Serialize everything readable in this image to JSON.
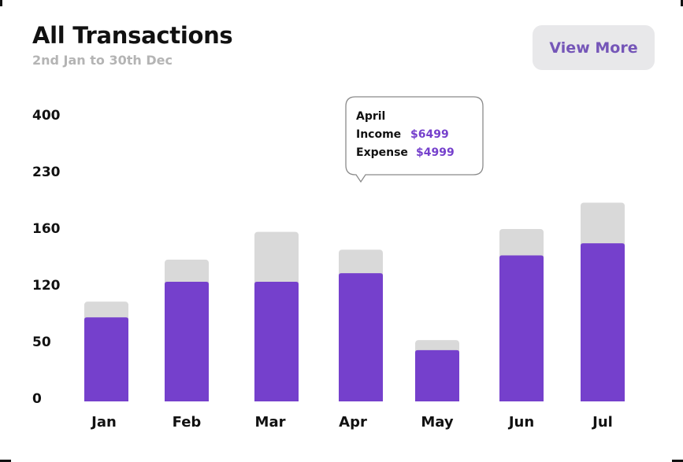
{
  "header": {
    "title": "All Transactions",
    "subtitle": "2nd Jan to 30th Dec",
    "view_more_label": "View More"
  },
  "colors": {
    "income": "#7540cc",
    "total": "#d9d9d9",
    "tooltip_value": "#7540cc",
    "button_text": "#7556b8",
    "button_bg": "#e8e8ea"
  },
  "chart_data": {
    "type": "bar",
    "stacked": true,
    "categories": [
      "Jan",
      "Feb",
      "Mar",
      "Apr",
      "May",
      "Jun",
      "Jul"
    ],
    "y_tick_labels": [
      "400",
      "230",
      "160",
      "120",
      "50",
      "0"
    ],
    "series": [
      {
        "values": [
          118,
          168,
          168,
          180,
          72,
          205,
          222
        ]
      },
      {
        "values": [
          22,
          31,
          70,
          33,
          14,
          37,
          57
        ]
      }
    ],
    "grid": false,
    "legend": "none",
    "tooltip": {
      "category": "April",
      "rows": [
        {
          "label": "Income",
          "value": "$6499"
        },
        {
          "label": "Expense",
          "value": "$4999"
        }
      ]
    }
  }
}
